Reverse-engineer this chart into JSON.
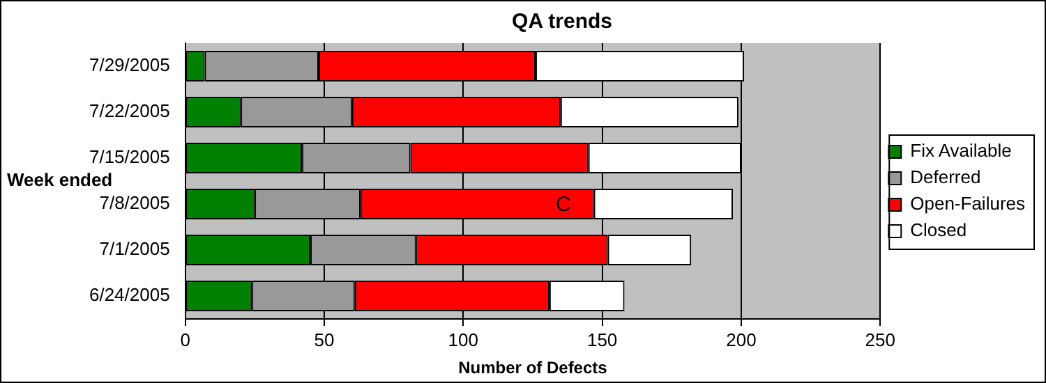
{
  "chart_data": {
    "type": "bar",
    "orientation": "horizontal",
    "stacked": true,
    "title": "QA trends",
    "xlabel": "Number of Defects",
    "ylabel": "Week ended",
    "categories": [
      "7/29/2005",
      "7/22/2005",
      "7/15/2005",
      "7/8/2005",
      "7/1/2005",
      "6/24/2005"
    ],
    "series": [
      {
        "name": "Fix Available",
        "color": "#008000",
        "values": [
          7,
          20,
          42,
          25,
          45,
          24
        ]
      },
      {
        "name": "Deferred",
        "color": "#999999",
        "values": [
          41,
          40,
          39,
          38,
          38,
          37
        ]
      },
      {
        "name": "Open-Failures",
        "color": "#ff0000",
        "values": [
          78,
          75,
          64,
          84,
          69,
          70
        ]
      },
      {
        "name": "Closed",
        "color": "#ffffff",
        "values": [
          75,
          64,
          55,
          50,
          30,
          27
        ]
      }
    ],
    "xlim": [
      0,
      250
    ],
    "xticks": [
      0,
      50,
      100,
      150,
      200,
      250
    ],
    "grid": "x",
    "legend": "right",
    "annotations": [
      {
        "text": "C",
        "x": 136,
        "y": "7/8/2005"
      }
    ]
  }
}
